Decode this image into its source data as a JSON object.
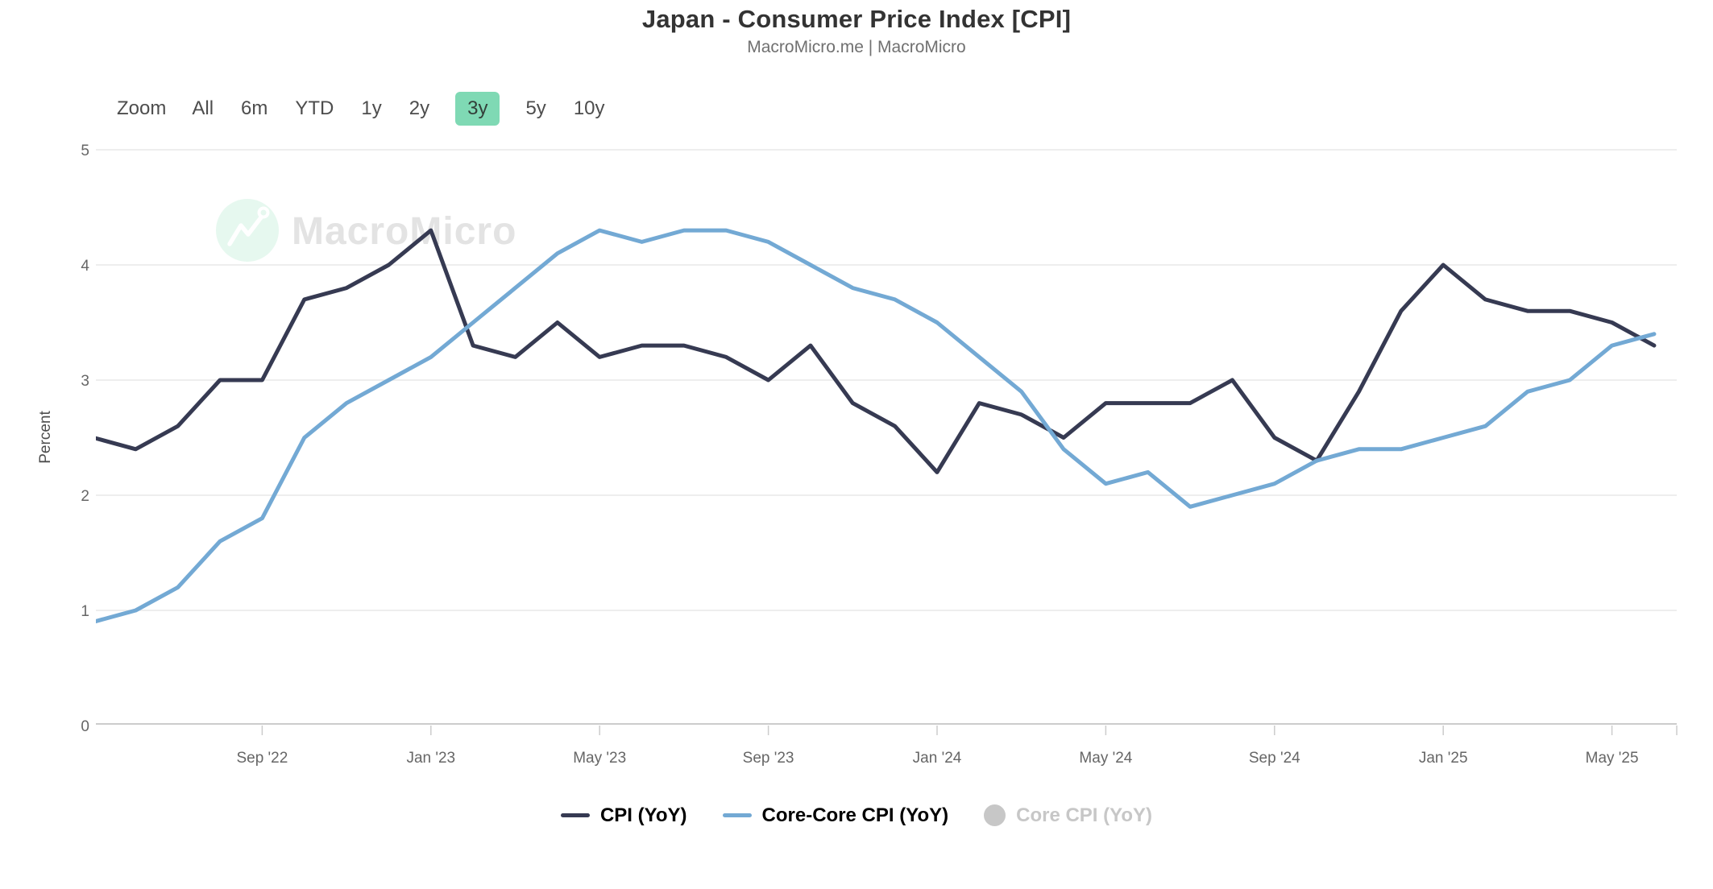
{
  "header": {
    "title": "Japan - Consumer Price Index [CPI]",
    "subtitle": "MacroMicro.me | MacroMicro"
  },
  "toolbar": {
    "zoom_label": "Zoom",
    "ranges": [
      {
        "label": "All",
        "selected": false
      },
      {
        "label": "6m",
        "selected": false
      },
      {
        "label": "YTD",
        "selected": false
      },
      {
        "label": "1y",
        "selected": false
      },
      {
        "label": "2y",
        "selected": false
      },
      {
        "label": "3y",
        "selected": true
      },
      {
        "label": "5y",
        "selected": false
      },
      {
        "label": "10y",
        "selected": false
      }
    ]
  },
  "watermark": {
    "brand": "MacroMicro"
  },
  "colors": {
    "selected_range_bg": "#7fd9b4",
    "grid": "#e9e9e9",
    "axis": "#cccccc",
    "tick_label": "#666666",
    "axis_title": "#4d4d4d",
    "disabled_legend": "#c7c7c7",
    "watermark_text": "#e3e3e3",
    "watermark_circle": "#e6f8ef"
  },
  "chart_data": {
    "type": "line",
    "title": "Japan - Consumer Price Index [CPI]",
    "subtitle": "MacroMicro.me | MacroMicro",
    "xlabel": "",
    "ylabel": "Percent",
    "ylim": [
      0,
      5
    ],
    "yticks": [
      0,
      1,
      2,
      3,
      4,
      5
    ],
    "grid": true,
    "legend_position": "bottom",
    "months": [
      "2022-05",
      "2022-06",
      "2022-07",
      "2022-08",
      "2022-09",
      "2022-10",
      "2022-11",
      "2022-12",
      "2023-01",
      "2023-02",
      "2023-03",
      "2023-04",
      "2023-05",
      "2023-06",
      "2023-07",
      "2023-08",
      "2023-09",
      "2023-10",
      "2023-11",
      "2023-12",
      "2024-01",
      "2024-02",
      "2024-03",
      "2024-04",
      "2024-05",
      "2024-06",
      "2024-07",
      "2024-08",
      "2024-09",
      "2024-10",
      "2024-11",
      "2024-12",
      "2025-01",
      "2025-02",
      "2025-03",
      "2025-04",
      "2025-05",
      "2025-06"
    ],
    "x_tick_labels": [
      {
        "label": "Sep '22",
        "month": "2022-09"
      },
      {
        "label": "Jan '23",
        "month": "2023-01"
      },
      {
        "label": "May '23",
        "month": "2023-05"
      },
      {
        "label": "Sep '23",
        "month": "2023-09"
      },
      {
        "label": "Jan '24",
        "month": "2024-01"
      },
      {
        "label": "May '24",
        "month": "2024-05"
      },
      {
        "label": "Sep '24",
        "month": "2024-09"
      },
      {
        "label": "Jan '25",
        "month": "2025-01"
      },
      {
        "label": "May '25",
        "month": "2025-05"
      }
    ],
    "series": [
      {
        "name": "CPI (YoY)",
        "color": "#363a52",
        "disabled": false,
        "values": [
          2.5,
          2.4,
          2.6,
          3.0,
          3.0,
          3.7,
          3.8,
          4.0,
          4.3,
          3.3,
          3.2,
          3.5,
          3.2,
          3.3,
          3.3,
          3.2,
          3.0,
          3.3,
          2.8,
          2.6,
          2.2,
          2.8,
          2.7,
          2.5,
          2.8,
          2.8,
          2.8,
          3.0,
          2.5,
          2.3,
          2.9,
          3.6,
          4.0,
          3.7,
          3.6,
          3.6,
          3.5,
          3.3
        ]
      },
      {
        "name": "Core-Core CPI (YoY)",
        "color": "#73a9d4",
        "disabled": false,
        "values": [
          0.9,
          1.0,
          1.2,
          1.6,
          1.8,
          2.5,
          2.8,
          3.0,
          3.2,
          3.5,
          3.8,
          4.1,
          4.3,
          4.2,
          4.3,
          4.3,
          4.2,
          4.0,
          3.8,
          3.7,
          3.5,
          3.2,
          2.9,
          2.4,
          2.1,
          2.2,
          1.9,
          2.0,
          2.1,
          2.3,
          2.4,
          2.4,
          2.5,
          2.6,
          2.9,
          3.0,
          3.3,
          3.4
        ]
      },
      {
        "name": "Core CPI (YoY)",
        "color": "#c7c7c7",
        "disabled": true,
        "values": []
      }
    ]
  }
}
